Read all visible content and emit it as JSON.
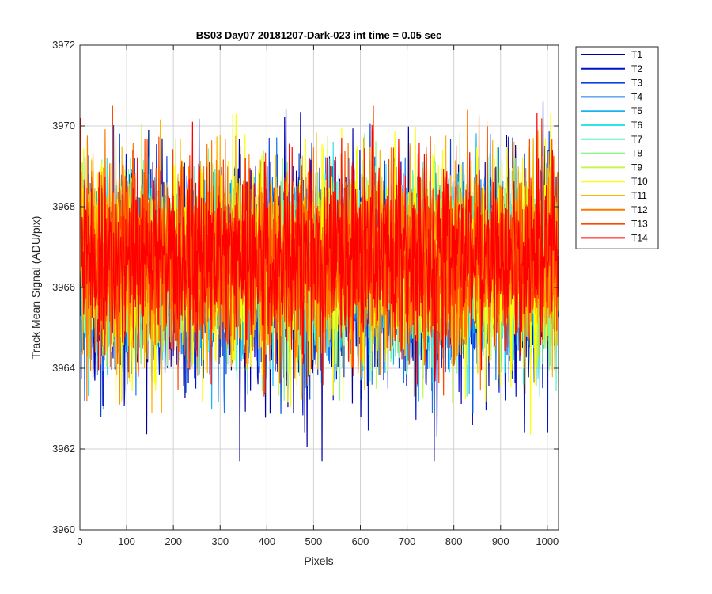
{
  "chart_data": {
    "type": "line",
    "title": "BS03 Day07 20181207-Dark-023 int time = 0.05 sec",
    "xlabel": "Pixels",
    "ylabel": "Track Mean Signal (ADU/pix)",
    "xlim": [
      0,
      1024
    ],
    "ylim": [
      3960,
      3972
    ],
    "xticks": [
      0,
      100,
      200,
      300,
      400,
      500,
      600,
      700,
      800,
      900,
      1000
    ],
    "yticks": [
      3960,
      3962,
      3964,
      3966,
      3968,
      3970,
      3972
    ],
    "grid": true,
    "legend_position": "outside-top-right",
    "n_points": 1024,
    "series": [
      {
        "name": "T1",
        "color": "#0000a8",
        "mean": 3966.3,
        "min": 3961.7,
        "max": 3970.6
      },
      {
        "name": "T2",
        "color": "#0016c8",
        "mean": 3966.3,
        "min": 3962.4,
        "max": 3970.4
      },
      {
        "name": "T3",
        "color": "#0a44e0",
        "mean": 3966.4,
        "min": 3962.8,
        "max": 3970.3
      },
      {
        "name": "T4",
        "color": "#1478f0",
        "mean": 3966.4,
        "min": 3962.9,
        "max": 3970.2
      },
      {
        "name": "T5",
        "color": "#19b4f0",
        "mean": 3966.4,
        "min": 3963.0,
        "max": 3970.2
      },
      {
        "name": "T6",
        "color": "#2de6e6",
        "mean": 3966.5,
        "min": 3963.2,
        "max": 3970.1
      },
      {
        "name": "T7",
        "color": "#5af0c8",
        "mean": 3966.5,
        "min": 3963.3,
        "max": 3970.1
      },
      {
        "name": "T8",
        "color": "#8cf58c",
        "mean": 3966.5,
        "min": 3963.2,
        "max": 3970.2
      },
      {
        "name": "T9",
        "color": "#c8f550",
        "mean": 3966.6,
        "min": 3962.9,
        "max": 3970.1
      },
      {
        "name": "T10",
        "color": "#ffff00",
        "mean": 3966.6,
        "min": 3961.8,
        "max": 3970.3
      },
      {
        "name": "T11",
        "color": "#ffb400",
        "mean": 3966.7,
        "min": 3962.9,
        "max": 3970.8
      },
      {
        "name": "T12",
        "color": "#ff7800",
        "mean": 3966.7,
        "min": 3963.1,
        "max": 3970.4
      },
      {
        "name": "T13",
        "color": "#ff4600",
        "mean": 3966.8,
        "min": 3963.3,
        "max": 3970.5
      },
      {
        "name": "T14",
        "color": "#ff0000",
        "mean": 3966.8,
        "min": 3963.6,
        "max": 3970.9
      }
    ]
  }
}
